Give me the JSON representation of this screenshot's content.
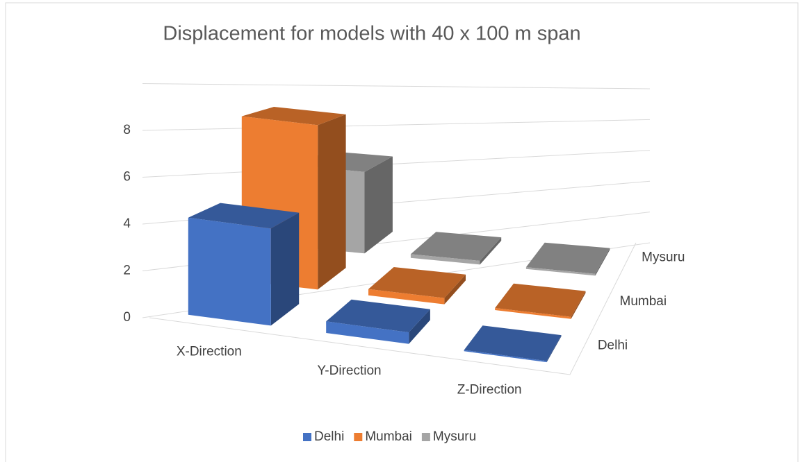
{
  "chart_data": {
    "type": "bar3d",
    "title": "Displacement for models with 40 x 100 m span",
    "categories": [
      "X-Direction",
      "Y-Direction",
      "Z-Direction"
    ],
    "series": [
      {
        "name": "Delhi",
        "color": "#4472c4",
        "values": [
          4.2,
          0.5,
          0.05
        ]
      },
      {
        "name": "Mumbai",
        "color": "#ed7d31",
        "values": [
          7.9,
          0.3,
          0.1
        ]
      },
      {
        "name": "Mysuru",
        "color": "#a5a5a5",
        "values": [
          4.4,
          0.2,
          0.1
        ]
      }
    ],
    "ylim": [
      0,
      10
    ],
    "yticks": [
      0,
      2,
      4,
      6,
      8
    ],
    "grid": true,
    "legend": "bottom"
  }
}
